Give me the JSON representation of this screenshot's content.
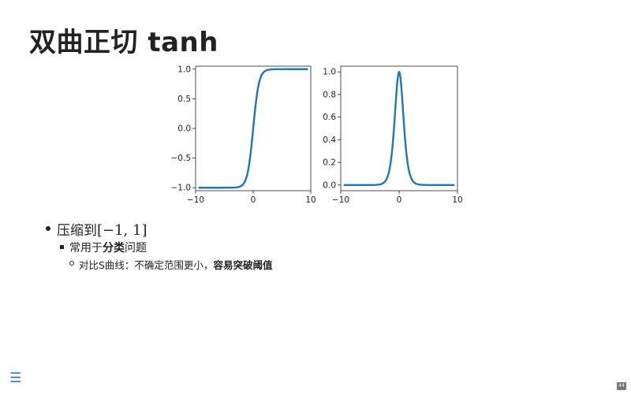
{
  "slide": {
    "title": "双曲正切 tanh",
    "page_number": "44",
    "menu_icon": "hamburger-menu-icon"
  },
  "bullets": {
    "l1_text": "压缩到",
    "l1_math": "[−1, 1]",
    "l2_prefix": "常用于",
    "l2_bold": "分类",
    "l2_suffix": "问题",
    "l3_prefix": "对比S曲线：不确定范围更小，",
    "l3_bold": "容易突破阈值"
  },
  "colors": {
    "line": "#1f77b4",
    "menu": "#2a76c6"
  },
  "chart_data": [
    {
      "type": "line",
      "function": "tanh(x)",
      "x": [
        -10,
        -8,
        -6,
        -4,
        -3,
        -2,
        -1.5,
        -1,
        -0.5,
        0,
        0.5,
        1,
        1.5,
        2,
        3,
        4,
        6,
        8,
        10
      ],
      "y": [
        -1.0,
        -1.0,
        -1.0,
        -0.999,
        -0.995,
        -0.964,
        -0.905,
        -0.762,
        -0.462,
        0.0,
        0.462,
        0.762,
        0.905,
        0.964,
        0.995,
        0.999,
        1.0,
        1.0,
        1.0
      ],
      "xlim": [
        -10,
        10
      ],
      "ylim": [
        -1.05,
        1.05
      ],
      "xticks": [
        "−10",
        "0",
        "10"
      ],
      "xtick_values": [
        -10,
        0,
        10
      ],
      "yticks": [
        "−1.0",
        "−0.5",
        "0.0",
        "0.5",
        "1.0"
      ],
      "ytick_values": [
        -1.0,
        -0.5,
        0.0,
        0.5,
        1.0
      ]
    },
    {
      "type": "line",
      "function": "1 - tanh(x)^2",
      "x": [
        -10,
        -6,
        -4,
        -3,
        -2.5,
        -2,
        -1.5,
        -1,
        -0.75,
        -0.5,
        -0.25,
        0,
        0.25,
        0.5,
        0.75,
        1,
        1.5,
        2,
        2.5,
        3,
        4,
        6,
        10
      ],
      "y": [
        0.0,
        0.0,
        0.001,
        0.01,
        0.026,
        0.071,
        0.181,
        0.42,
        0.597,
        0.786,
        0.94,
        1.0,
        0.94,
        0.786,
        0.597,
        0.42,
        0.181,
        0.071,
        0.026,
        0.01,
        0.001,
        0.0,
        0.0
      ],
      "xlim": [
        -10,
        10
      ],
      "ylim": [
        -0.05,
        1.05
      ],
      "xticks": [
        "−10",
        "0",
        "10"
      ],
      "xtick_values": [
        -10,
        0,
        10
      ],
      "yticks": [
        "0.0",
        "0.2",
        "0.4",
        "0.6",
        "0.8",
        "1.0"
      ],
      "ytick_values": [
        0.0,
        0.2,
        0.4,
        0.6,
        0.8,
        1.0
      ]
    }
  ]
}
